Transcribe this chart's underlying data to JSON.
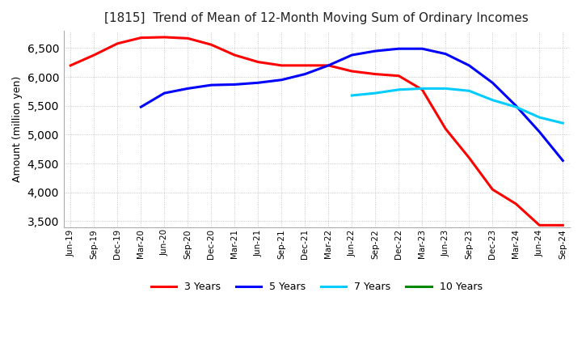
{
  "title": "[1815]  Trend of Mean of 12-Month Moving Sum of Ordinary Incomes",
  "ylabel": "Amount (million yen)",
  "ylim": [
    3400,
    6800
  ],
  "yticks": [
    3500,
    4000,
    4500,
    5000,
    5500,
    6000,
    6500
  ],
  "background_color": "#ffffff",
  "plot_bg_color": "#ffffff",
  "grid_color": "#bbbbbb",
  "legend": [
    "3 Years",
    "5 Years",
    "7 Years",
    "10 Years"
  ],
  "line_colors": [
    "#ff0000",
    "#0000ff",
    "#00ccff",
    "#008800"
  ],
  "x_labels": [
    "Jun-19",
    "Sep-19",
    "Dec-19",
    "Mar-20",
    "Jun-20",
    "Sep-20",
    "Dec-20",
    "Mar-21",
    "Jun-21",
    "Sep-21",
    "Dec-21",
    "Mar-22",
    "Jun-22",
    "Sep-22",
    "Dec-22",
    "Mar-23",
    "Jun-23",
    "Sep-23",
    "Dec-23",
    "Mar-24",
    "Jun-24",
    "Sep-24"
  ],
  "series": {
    "3yr": [
      6200,
      6380,
      6580,
      6680,
      6690,
      6670,
      6560,
      6380,
      6260,
      6200,
      6200,
      6200,
      6100,
      6050,
      6020,
      5780,
      5100,
      4600,
      4050,
      3800,
      3430,
      3430
    ],
    "5yr": [
      null,
      null,
      null,
      5480,
      5720,
      5800,
      5860,
      5870,
      5900,
      5950,
      6050,
      6200,
      6380,
      6450,
      6490,
      6490,
      6400,
      6200,
      5900,
      5500,
      5050,
      4550
    ],
    "7yr": [
      null,
      null,
      null,
      null,
      null,
      null,
      null,
      null,
      null,
      null,
      null,
      null,
      5680,
      5720,
      5780,
      5800,
      5800,
      5760,
      5600,
      5480,
      5300,
      5200
    ],
    "10yr": [
      null,
      null,
      null,
      null,
      null,
      null,
      null,
      null,
      null,
      null,
      null,
      null,
      null,
      null,
      null,
      null,
      null,
      null,
      null,
      null,
      null,
      null
    ]
  }
}
